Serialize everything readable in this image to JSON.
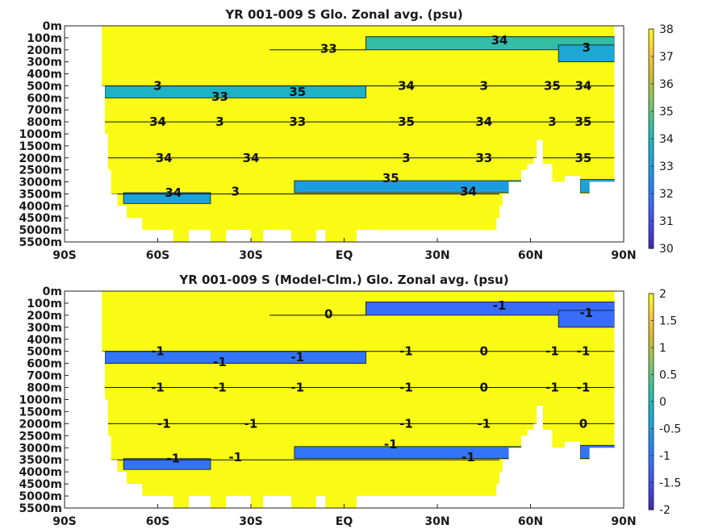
{
  "chart_data": [
    {
      "type": "heatmap",
      "title": "YR 001-009 S Glo. Zonal avg. (psu)",
      "x_ticks": [
        "90S",
        "60S",
        "30S",
        "EQ",
        "30N",
        "60N",
        "90N"
      ],
      "y_ticks": [
        "0m",
        "100m",
        "200m",
        "300m",
        "400m",
        "500m",
        "600m",
        "700m",
        "800m",
        "1000m",
        "1500m",
        "2000m",
        "2500m",
        "3000m",
        "3500m",
        "4000m",
        "4500m",
        "5000m",
        "5500m"
      ],
      "xlim": [
        -90,
        90
      ],
      "colorbar": {
        "min": 30,
        "max": 38,
        "ticks": [
          "38",
          "37",
          "36",
          "35",
          "34",
          "33",
          "32",
          "31",
          "30"
        ]
      },
      "background_value": 38,
      "bands": [
        {
          "lat": [
            -77,
            7
          ],
          "depth_level": [
            5,
            6
          ],
          "value": 33.8
        },
        {
          "lat": [
            7,
            87
          ],
          "depth_level": [
            0.9,
            2.0
          ],
          "value": 34.4
        },
        {
          "lat": [
            69,
            87
          ],
          "depth_level": [
            1.6,
            3.0
          ],
          "value": 33.4
        },
        {
          "lat": [
            -16,
            60
          ],
          "depth_level": [
            12.9,
            13.9
          ],
          "value": 33.0
        },
        {
          "lat": [
            -71,
            -43
          ],
          "depth_level": [
            13.9,
            14.8
          ],
          "value": 33.2
        },
        {
          "lat": [
            76,
            87
          ],
          "depth_level": [
            12.8,
            13.9
          ],
          "value": 33.2
        }
      ],
      "contour_labels": [
        "3",
        "33",
        "35",
        "34",
        "3",
        "35",
        "34",
        "34"
      ]
    },
    {
      "type": "heatmap",
      "title": "YR 001-009 S (Model-Clm.) Glo. Zonal avg. (psu)",
      "x_ticks": [
        "90S",
        "60S",
        "30S",
        "EQ",
        "30N",
        "60N",
        "90N"
      ],
      "y_ticks": [
        "0m",
        "100m",
        "200m",
        "300m",
        "400m",
        "500m",
        "600m",
        "700m",
        "800m",
        "1000m",
        "1500m",
        "2000m",
        "2500m",
        "3000m",
        "3500m",
        "4000m",
        "4500m",
        "5000m",
        "5500m"
      ],
      "xlim": [
        -90,
        90
      ],
      "colorbar": {
        "min": -2,
        "max": 2,
        "ticks": [
          "2",
          "1.5",
          "1",
          "0.5",
          "0",
          "-0.5",
          "-1",
          "-1.5",
          "-2"
        ]
      },
      "background_value": 2,
      "bands": [
        {
          "lat": [
            -77,
            7
          ],
          "depth_level": [
            5,
            6
          ],
          "value": -1.0
        },
        {
          "lat": [
            7,
            87
          ],
          "depth_level": [
            0.9,
            2.0
          ],
          "value": -1.1
        },
        {
          "lat": [
            69,
            87
          ],
          "depth_level": [
            1.6,
            3.0
          ],
          "value": -1.1
        },
        {
          "lat": [
            -16,
            60
          ],
          "depth_level": [
            12.9,
            13.9
          ],
          "value": -1.0
        },
        {
          "lat": [
            -71,
            -43
          ],
          "depth_level": [
            13.9,
            14.8
          ],
          "value": -1.0
        },
        {
          "lat": [
            76,
            87
          ],
          "depth_level": [
            12.8,
            13.9
          ],
          "value": -1.0
        }
      ],
      "contour_labels": [
        "-1",
        "-1",
        "-1",
        "-1",
        "0",
        "-1",
        "-1"
      ]
    }
  ]
}
